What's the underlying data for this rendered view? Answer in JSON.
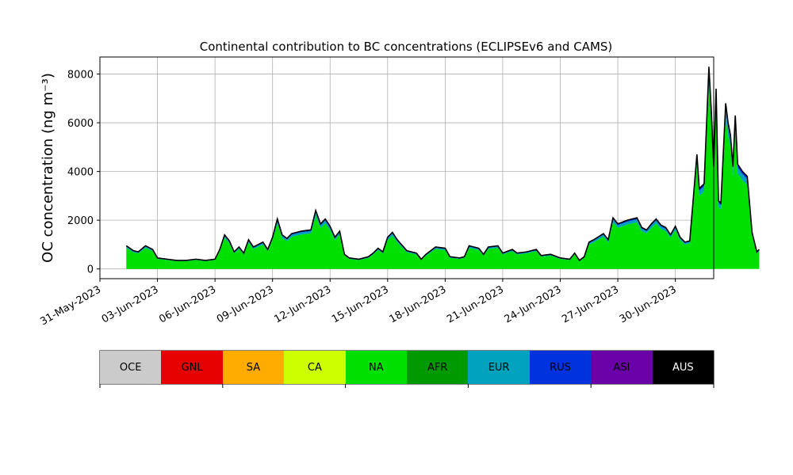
{
  "chart_data": {
    "type": "area",
    "title": "Continental contribution to BC concentrations (ECLIPSEv6 and CAMS)",
    "ylabel": "OC concentration (ng m⁻³)",
    "xlabel": "",
    "ylim": [
      -400,
      8700
    ],
    "xlim": [
      "2023-05-31",
      "2023-07-02"
    ],
    "x_ticks": [
      "31-May-2023",
      "03-Jun-2023",
      "06-Jun-2023",
      "09-Jun-2023",
      "12-Jun-2023",
      "15-Jun-2023",
      "18-Jun-2023",
      "21-Jun-2023",
      "24-Jun-2023",
      "27-Jun-2023",
      "30-Jun-2023"
    ],
    "y_ticks": [
      0,
      2000,
      4000,
      6000,
      8000
    ],
    "grid": true,
    "stacked": true,
    "total_outline_color": "#000000",
    "series_total": {
      "name": "",
      "points": [
        [
          "2023-06-01 09:00",
          950
        ],
        [
          "2023-06-01 18:00",
          750
        ],
        [
          "2023-06-02 00:00",
          700
        ],
        [
          "2023-06-02 09:00",
          950
        ],
        [
          "2023-06-02 18:00",
          800
        ],
        [
          "2023-06-03 00:00",
          450
        ],
        [
          "2023-06-03 12:00",
          400
        ],
        [
          "2023-06-04 00:00",
          350
        ],
        [
          "2023-06-04 12:00",
          350
        ],
        [
          "2023-06-05 00:00",
          400
        ],
        [
          "2023-06-05 12:00",
          350
        ],
        [
          "2023-06-06 00:00",
          400
        ],
        [
          "2023-06-06 06:00",
          800
        ],
        [
          "2023-06-06 12:00",
          1400
        ],
        [
          "2023-06-06 18:00",
          1150
        ],
        [
          "2023-06-07 00:00",
          700
        ],
        [
          "2023-06-07 06:00",
          900
        ],
        [
          "2023-06-07 12:00",
          650
        ],
        [
          "2023-06-07 18:00",
          1200
        ],
        [
          "2023-06-08 00:00",
          900
        ],
        [
          "2023-06-08 12:00",
          1100
        ],
        [
          "2023-06-08 18:00",
          800
        ],
        [
          "2023-06-09 00:00",
          1300
        ],
        [
          "2023-06-09 06:00",
          2050
        ],
        [
          "2023-06-09 12:00",
          1400
        ],
        [
          "2023-06-09 18:00",
          1250
        ],
        [
          "2023-06-10 00:00",
          1450
        ],
        [
          "2023-06-10 12:00",
          1550
        ],
        [
          "2023-06-11 00:00",
          1600
        ],
        [
          "2023-06-11 06:00",
          2400
        ],
        [
          "2023-06-11 12:00",
          1850
        ],
        [
          "2023-06-11 18:00",
          2050
        ],
        [
          "2023-06-12 00:00",
          1750
        ],
        [
          "2023-06-12 06:00",
          1300
        ],
        [
          "2023-06-12 12:00",
          1550
        ],
        [
          "2023-06-12 18:00",
          600
        ],
        [
          "2023-06-13 00:00",
          450
        ],
        [
          "2023-06-13 12:00",
          400
        ],
        [
          "2023-06-14 00:00",
          500
        ],
        [
          "2023-06-14 06:00",
          650
        ],
        [
          "2023-06-14 12:00",
          850
        ],
        [
          "2023-06-14 18:00",
          700
        ],
        [
          "2023-06-15 00:00",
          1300
        ],
        [
          "2023-06-15 06:00",
          1500
        ],
        [
          "2023-06-15 12:00",
          1200
        ],
        [
          "2023-06-16 00:00",
          750
        ],
        [
          "2023-06-16 12:00",
          650
        ],
        [
          "2023-06-16 18:00",
          400
        ],
        [
          "2023-06-17 00:00",
          600
        ],
        [
          "2023-06-17 12:00",
          900
        ],
        [
          "2023-06-18 00:00",
          850
        ],
        [
          "2023-06-18 06:00",
          500
        ],
        [
          "2023-06-18 18:00",
          450
        ],
        [
          "2023-06-19 00:00",
          500
        ],
        [
          "2023-06-19 06:00",
          950
        ],
        [
          "2023-06-19 18:00",
          850
        ],
        [
          "2023-06-20 00:00",
          600
        ],
        [
          "2023-06-20 06:00",
          900
        ],
        [
          "2023-06-20 18:00",
          950
        ],
        [
          "2023-06-21 00:00",
          650
        ],
        [
          "2023-06-21 12:00",
          800
        ],
        [
          "2023-06-21 18:00",
          650
        ],
        [
          "2023-06-22 06:00",
          700
        ],
        [
          "2023-06-22 18:00",
          800
        ],
        [
          "2023-06-23 00:00",
          550
        ],
        [
          "2023-06-23 12:00",
          600
        ],
        [
          "2023-06-24 00:00",
          450
        ],
        [
          "2023-06-24 12:00",
          400
        ],
        [
          "2023-06-24 18:00",
          650
        ],
        [
          "2023-06-25 00:00",
          350
        ],
        [
          "2023-06-25 06:00",
          500
        ],
        [
          "2023-06-25 12:00",
          1100
        ],
        [
          "2023-06-25 18:00",
          1200
        ],
        [
          "2023-06-26 06:00",
          1450
        ],
        [
          "2023-06-26 12:00",
          1200
        ],
        [
          "2023-06-26 18:00",
          2100
        ],
        [
          "2023-06-27 00:00",
          1850
        ],
        [
          "2023-06-27 12:00",
          2000
        ],
        [
          "2023-06-28 00:00",
          2100
        ],
        [
          "2023-06-28 06:00",
          1700
        ],
        [
          "2023-06-28 12:00",
          1600
        ],
        [
          "2023-06-28 18:00",
          1850
        ],
        [
          "2023-06-29 00:00",
          2050
        ],
        [
          "2023-06-29 06:00",
          1800
        ],
        [
          "2023-06-29 12:00",
          1700
        ],
        [
          "2023-06-29 18:00",
          1400
        ],
        [
          "2023-06-30 00:00",
          1750
        ],
        [
          "2023-06-30 06:00",
          1300
        ],
        [
          "2023-06-30 12:00",
          1100
        ],
        [
          "2023-06-30 18:00",
          1150
        ],
        [
          "2023-07-01 00:00",
          3500
        ],
        [
          "2023-07-01 03:00",
          4700
        ],
        [
          "2023-07-01 06:00",
          3300
        ],
        [
          "2023-07-01 12:00",
          3500
        ],
        [
          "2023-07-01 18:00",
          8300
        ],
        [
          "2023-07-01 21:00",
          6500
        ],
        [
          "2023-07-02 00:00",
          4200
        ],
        [
          "2023-07-02 03:00",
          7400
        ],
        [
          "2023-07-02 06:00",
          2800
        ],
        [
          "2023-07-02 09:00",
          2700
        ],
        [
          "2023-07-02 15:00",
          6800
        ],
        [
          "2023-07-02 18:00",
          6000
        ],
        [
          "2023-07-02 21:00",
          5500
        ],
        [
          "2023-07-03 00:00",
          4200
        ],
        [
          "2023-07-03 03:00",
          6300
        ],
        [
          "2023-07-03 06:00",
          4300
        ],
        [
          "2023-07-03 12:00",
          4000
        ],
        [
          "2023-07-03 18:00",
          3800
        ],
        [
          "2023-07-04 00:00",
          1500
        ],
        [
          "2023-07-04 06:00",
          700
        ],
        [
          "2023-07-04 09:00",
          800
        ]
      ]
    },
    "eur_fraction": 0.06,
    "rus_fraction": 0.03,
    "legend": {
      "placement": "bottom",
      "entries": [
        {
          "label": "OCE",
          "color": "#cbcbcb",
          "text_color": "#000000"
        },
        {
          "label": "GNL",
          "color": "#e60000",
          "text_color": "#000000"
        },
        {
          "label": "SA",
          "color": "#ffab00",
          "text_color": "#000000"
        },
        {
          "label": "CA",
          "color": "#ccff00",
          "text_color": "#000000"
        },
        {
          "label": "NA",
          "color": "#00e000",
          "text_color": "#000000"
        },
        {
          "label": "AFR",
          "color": "#009a00",
          "text_color": "#000000"
        },
        {
          "label": "EUR",
          "color": "#00a2bd",
          "text_color": "#000000"
        },
        {
          "label": "RUS",
          "color": "#0033dd",
          "text_color": "#000000"
        },
        {
          "label": "ASI",
          "color": "#6a00a8",
          "text_color": "#000000"
        },
        {
          "label": "AUS",
          "color": "#000000",
          "text_color": "#ffffff"
        }
      ]
    }
  }
}
